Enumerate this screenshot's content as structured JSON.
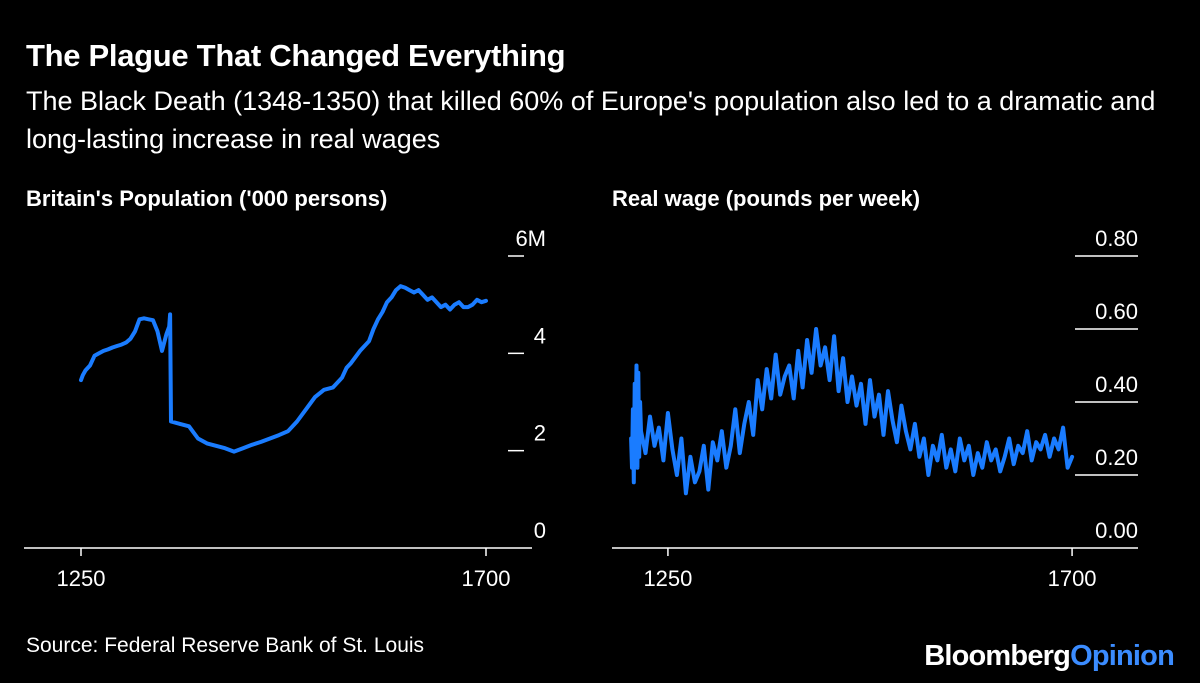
{
  "header": {
    "title": "The Plague That Changed Everything",
    "subtitle": "The Black Death (1348-1350) that killed 60% of Europe's population also led to a dramatic and long-lasting increase in real wages"
  },
  "footer": {
    "source": "Source: Federal Reserve Bank of St. Louis",
    "brand_main": "Bloomberg",
    "brand_accent": "Opinion"
  },
  "colors": {
    "line": "#1a7cff",
    "background": "#000000",
    "text": "#ffffff",
    "accent": "#3b8cff"
  },
  "chart_data": [
    {
      "type": "line",
      "title": "Britain's Population ('000 persons)",
      "xlabel": "",
      "ylabel": "",
      "xlim": [
        1210,
        1740
      ],
      "ylim": [
        0,
        6
      ],
      "x_ticks": [
        1250,
        1700
      ],
      "x_tick_labels": [
        "1250",
        "1700"
      ],
      "y_ticks": [
        0,
        2,
        4,
        6
      ],
      "y_tick_labels": [
        "0",
        "2",
        "4",
        "6M"
      ],
      "series": [
        {
          "name": "Population",
          "x": [
            1250,
            1252,
            1255,
            1260,
            1265,
            1270,
            1275,
            1280,
            1285,
            1290,
            1295,
            1300,
            1305,
            1310,
            1315,
            1320,
            1325,
            1330,
            1335,
            1340,
            1345,
            1348,
            1349,
            1350,
            1360,
            1370,
            1380,
            1390,
            1400,
            1410,
            1420,
            1430,
            1440,
            1450,
            1460,
            1470,
            1480,
            1490,
            1500,
            1510,
            1520,
            1530,
            1540,
            1545,
            1550,
            1560,
            1570,
            1575,
            1580,
            1585,
            1590,
            1595,
            1600,
            1605,
            1610,
            1615,
            1620,
            1625,
            1630,
            1635,
            1640,
            1645,
            1650,
            1655,
            1660,
            1665,
            1670,
            1675,
            1680,
            1685,
            1690,
            1695,
            1700
          ],
          "values": [
            3.45,
            3.55,
            3.65,
            3.75,
            3.95,
            4.0,
            4.05,
            4.08,
            4.12,
            4.15,
            4.18,
            4.22,
            4.3,
            4.45,
            4.7,
            4.72,
            4.7,
            4.68,
            4.45,
            4.05,
            4.4,
            4.55,
            4.8,
            2.6,
            2.55,
            2.5,
            2.25,
            2.15,
            2.1,
            2.05,
            1.98,
            2.05,
            2.12,
            2.18,
            2.25,
            2.32,
            2.4,
            2.6,
            2.85,
            3.1,
            3.25,
            3.3,
            3.5,
            3.7,
            3.8,
            4.05,
            4.25,
            4.5,
            4.7,
            4.85,
            5.05,
            5.15,
            5.3,
            5.38,
            5.35,
            5.3,
            5.25,
            5.3,
            5.2,
            5.1,
            5.15,
            5.05,
            4.95,
            5.0,
            4.9,
            5.0,
            5.05,
            4.95,
            4.95,
            5.0,
            5.1,
            5.05,
            5.08
          ]
        }
      ]
    },
    {
      "type": "line",
      "title": "Real wage (pounds per week)",
      "xlabel": "",
      "ylabel": "",
      "xlim": [
        1210,
        1740
      ],
      "ylim": [
        0,
        0.8
      ],
      "x_ticks": [
        1250,
        1700
      ],
      "x_tick_labels": [
        "1250",
        "1700"
      ],
      "y_ticks": [
        0,
        0.2,
        0.4,
        0.6,
        0.8
      ],
      "y_tick_labels": [
        "0.00",
        "0.20",
        "0.40",
        "0.60",
        "0.80"
      ],
      "series": [
        {
          "name": "Real wage",
          "x": [
            1209,
            1210,
            1211,
            1212,
            1213,
            1214,
            1215,
            1216,
            1217,
            1218,
            1219,
            1220,
            1225,
            1230,
            1235,
            1240,
            1245,
            1250,
            1255,
            1260,
            1265,
            1270,
            1275,
            1280,
            1285,
            1290,
            1295,
            1300,
            1305,
            1310,
            1315,
            1320,
            1325,
            1330,
            1335,
            1340,
            1345,
            1350,
            1355,
            1360,
            1365,
            1370,
            1375,
            1380,
            1385,
            1390,
            1395,
            1400,
            1405,
            1410,
            1415,
            1420,
            1425,
            1430,
            1435,
            1440,
            1445,
            1450,
            1455,
            1460,
            1465,
            1470,
            1475,
            1480,
            1485,
            1490,
            1495,
            1500,
            1505,
            1510,
            1515,
            1520,
            1525,
            1530,
            1535,
            1540,
            1545,
            1550,
            1555,
            1560,
            1565,
            1570,
            1575,
            1580,
            1585,
            1590,
            1595,
            1600,
            1605,
            1610,
            1615,
            1620,
            1625,
            1630,
            1635,
            1640,
            1645,
            1650,
            1655,
            1660,
            1665,
            1670,
            1675,
            1680,
            1685,
            1690,
            1695,
            1700
          ],
          "values": [
            0.3,
            0.22,
            0.38,
            0.18,
            0.45,
            0.34,
            0.5,
            0.22,
            0.48,
            0.25,
            0.4,
            0.32,
            0.26,
            0.36,
            0.28,
            0.33,
            0.24,
            0.37,
            0.27,
            0.2,
            0.3,
            0.15,
            0.25,
            0.18,
            0.21,
            0.28,
            0.16,
            0.29,
            0.24,
            0.32,
            0.22,
            0.28,
            0.38,
            0.26,
            0.34,
            0.4,
            0.31,
            0.46,
            0.38,
            0.49,
            0.41,
            0.53,
            0.42,
            0.47,
            0.5,
            0.41,
            0.54,
            0.44,
            0.57,
            0.48,
            0.6,
            0.5,
            0.55,
            0.46,
            0.58,
            0.43,
            0.52,
            0.4,
            0.47,
            0.39,
            0.45,
            0.34,
            0.46,
            0.36,
            0.42,
            0.31,
            0.43,
            0.35,
            0.29,
            0.39,
            0.32,
            0.27,
            0.34,
            0.25,
            0.3,
            0.2,
            0.28,
            0.24,
            0.31,
            0.22,
            0.27,
            0.21,
            0.3,
            0.24,
            0.28,
            0.2,
            0.26,
            0.22,
            0.29,
            0.24,
            0.27,
            0.21,
            0.25,
            0.3,
            0.23,
            0.28,
            0.26,
            0.32,
            0.24,
            0.29,
            0.27,
            0.31,
            0.25,
            0.3,
            0.27,
            0.33,
            0.22,
            0.25
          ]
        }
      ]
    }
  ]
}
